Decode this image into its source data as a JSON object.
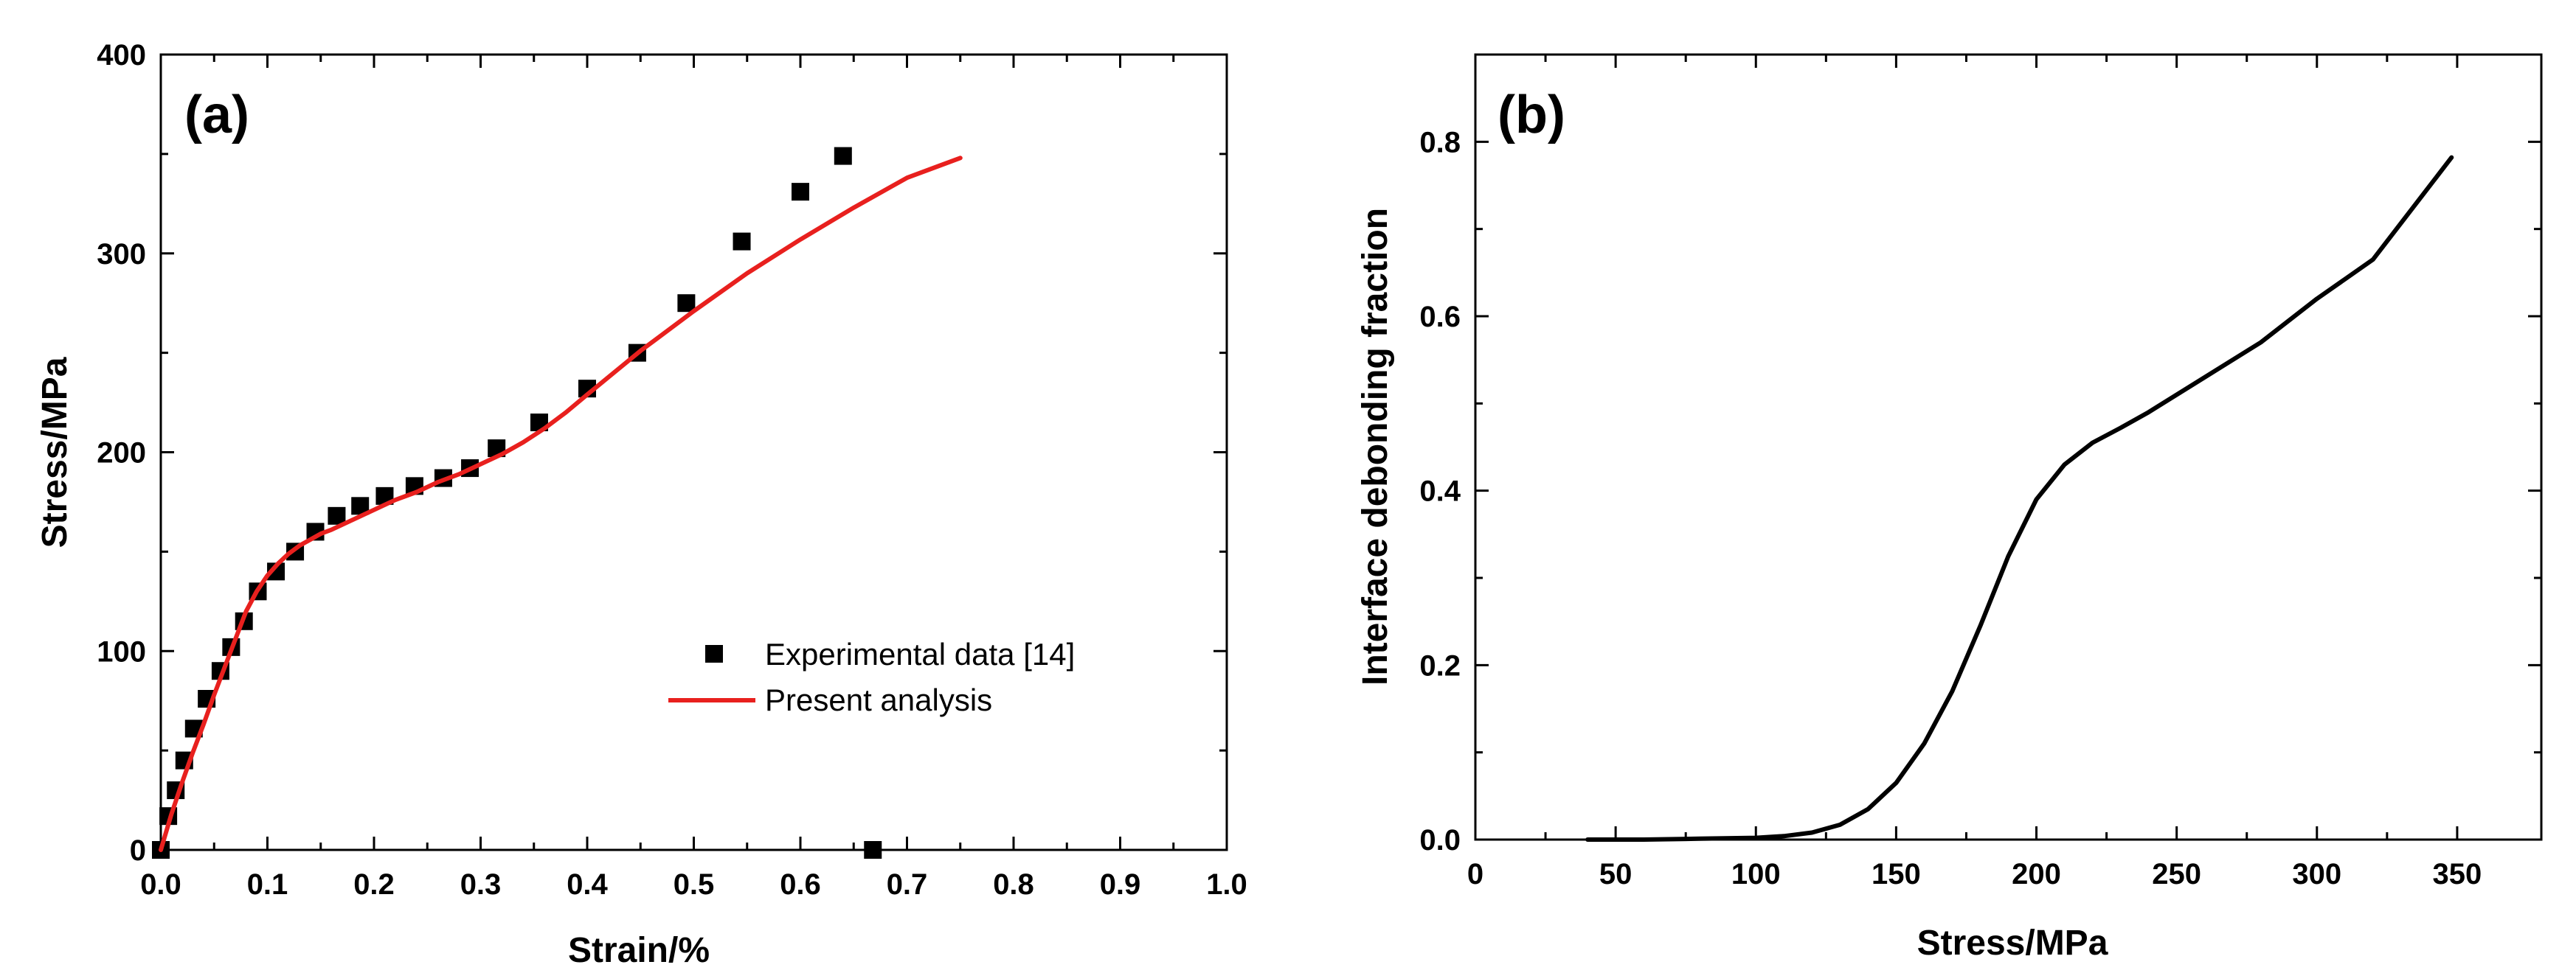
{
  "chart_data": [
    {
      "panel": "(a)",
      "type": "scatter+line",
      "title": "",
      "xlabel": "Strain/%",
      "ylabel": "Stress/MPa",
      "xlim": [
        0.0,
        1.0
      ],
      "ylim": [
        0,
        400
      ],
      "xticks": [
        "0.0",
        "0.1",
        "0.2",
        "0.3",
        "0.4",
        "0.5",
        "0.6",
        "0.7",
        "0.8",
        "0.9",
        "1.0"
      ],
      "yticks": [
        "0",
        "100",
        "200",
        "300",
        "400"
      ],
      "grid": false,
      "legend_position": "center-right",
      "series": [
        {
          "name": "Experimental data [14]",
          "kind": "scatter",
          "marker": "square",
          "color": "#000000",
          "x": [
            0.0,
            0.007,
            0.014,
            0.022,
            0.031,
            0.043,
            0.056,
            0.066,
            0.078,
            0.091,
            0.108,
            0.126,
            0.145,
            0.165,
            0.187,
            0.21,
            0.238,
            0.265,
            0.29,
            0.315,
            0.355,
            0.4,
            0.447,
            0.493,
            0.545,
            0.6,
            0.64,
            0.668
          ],
          "y": [
            0,
            17,
            30,
            45,
            61,
            76,
            90,
            102,
            115,
            130,
            140,
            150,
            160,
            168,
            173,
            178,
            183,
            187,
            192,
            202,
            215,
            232,
            250,
            275,
            306,
            331,
            349,
            0
          ]
        },
        {
          "name": "Present analysis",
          "kind": "line",
          "color": "#e8201e",
          "x": [
            0.0,
            0.01,
            0.02,
            0.03,
            0.04,
            0.05,
            0.06,
            0.07,
            0.08,
            0.09,
            0.1,
            0.11,
            0.12,
            0.13,
            0.14,
            0.15,
            0.16,
            0.18,
            0.2,
            0.22,
            0.24,
            0.26,
            0.28,
            0.3,
            0.32,
            0.34,
            0.36,
            0.38,
            0.4,
            0.45,
            0.5,
            0.55,
            0.6,
            0.65,
            0.7,
            0.75
          ],
          "y": [
            0,
            18,
            34,
            49,
            63,
            78,
            92,
            106,
            120,
            130,
            138,
            144,
            149,
            153,
            156,
            159,
            161,
            166,
            171,
            176,
            180,
            185,
            189,
            194,
            199,
            205,
            212,
            220,
            229,
            251,
            271,
            290,
            307,
            323,
            338,
            348
          ]
        }
      ]
    },
    {
      "panel": "(b)",
      "type": "line",
      "title": "",
      "xlabel": "Stress/MPa",
      "ylabel": "Interface debonding fraction",
      "xlim": [
        0,
        380
      ],
      "ylim": [
        0.0,
        0.9
      ],
      "xticks": [
        "0",
        "50",
        "100",
        "150",
        "200",
        "250",
        "300",
        "350"
      ],
      "yticks": [
        "0.0",
        "0.2",
        "0.4",
        "0.6",
        "0.8"
      ],
      "grid": false,
      "series": [
        {
          "name": "Interface debonding fraction",
          "kind": "line",
          "color": "#000000",
          "x": [
            40,
            60,
            80,
            100,
            110,
            120,
            130,
            140,
            150,
            160,
            170,
            180,
            190,
            200,
            210,
            220,
            230,
            240,
            260,
            280,
            300,
            320,
            348
          ],
          "y": [
            0.0,
            0.0,
            0.001,
            0.002,
            0.004,
            0.008,
            0.017,
            0.035,
            0.065,
            0.11,
            0.17,
            0.245,
            0.325,
            0.39,
            0.43,
            0.455,
            0.472,
            0.49,
            0.53,
            0.57,
            0.62,
            0.665,
            0.782
          ]
        }
      ]
    }
  ]
}
